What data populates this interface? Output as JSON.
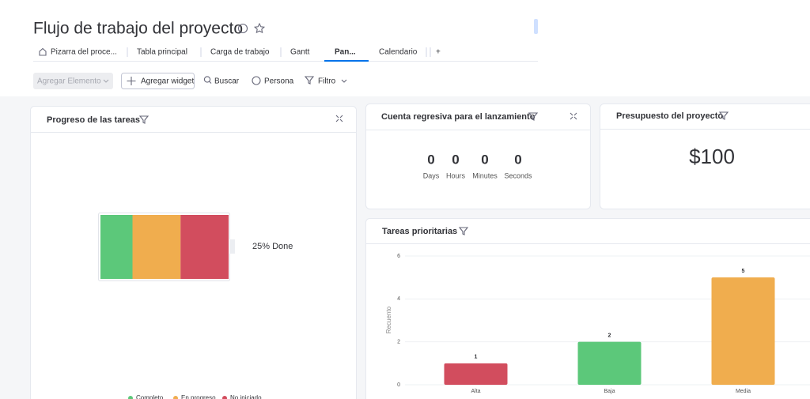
{
  "header": {
    "title": "Flujo de trabajo del proyecto"
  },
  "tabs": [
    "Pizarra del proce...",
    "Tabla principal",
    "Carga de trabajo",
    "Gantt",
    "Pan...",
    "Calendario",
    "+"
  ],
  "toolbar": {
    "add_item": "Agregar Elemento",
    "add_widget": "Agregar widget",
    "search": "Buscar",
    "person": "Persona",
    "filter": "Filtro"
  },
  "progress": {
    "title": "Progreso de las tareas",
    "label": "25% Done",
    "segments": [
      {
        "name": "Completo",
        "color": "#5cc87a",
        "value": 2
      },
      {
        "name": "En progreso",
        "color": "#f0ad4e",
        "value": 3
      },
      {
        "name": "No iniciado",
        "color": "#d24d5e",
        "value": 3
      }
    ]
  },
  "countdown": {
    "title": "Cuenta regresiva para el lanzamiento",
    "units": [
      {
        "value": 0,
        "label": "Days"
      },
      {
        "value": 0,
        "label": "Hours"
      },
      {
        "value": 0,
        "label": "Minutes"
      },
      {
        "value": 0,
        "label": "Seconds"
      }
    ]
  },
  "budget": {
    "title": "Presupuesto del proyecto",
    "value": "$100"
  },
  "chart_data": {
    "type": "bar",
    "title": "Tareas prioritarias",
    "y_label": "Recuento",
    "categories": [
      "Alta",
      "Baja",
      "Media"
    ],
    "values": [
      1,
      2,
      5
    ],
    "colors": [
      "#d24d5e",
      "#5cc87a",
      "#f0ad4e"
    ],
    "ylim": [
      0,
      6
    ],
    "yticks": [
      0,
      2,
      4,
      6
    ],
    "grid": true
  }
}
